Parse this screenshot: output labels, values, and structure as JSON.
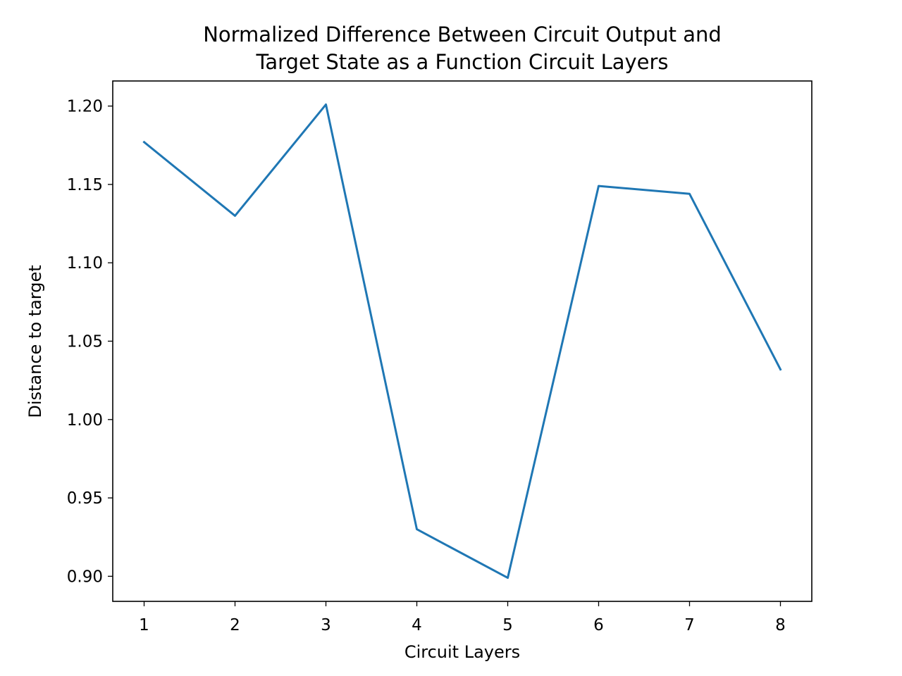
{
  "chart_data": {
    "type": "line",
    "title_lines": [
      "Normalized Difference Between Circuit Output and",
      "Target State as a Function Circuit Layers"
    ],
    "xlabel": "Circuit Layers",
    "ylabel": "Distance to target",
    "x": [
      1,
      2,
      3,
      4,
      5,
      6,
      7,
      8
    ],
    "series": [
      {
        "values": [
          1.177,
          1.13,
          1.201,
          0.93,
          0.899,
          1.149,
          1.144,
          1.032
        ],
        "color": "#1f77b4"
      }
    ],
    "xlim": [
      0.655,
      8.345
    ],
    "ylim": [
      0.884,
      1.216
    ],
    "xticks": [
      1,
      2,
      3,
      4,
      5,
      6,
      7,
      8
    ],
    "xtick_labels": [
      "1",
      "2",
      "3",
      "4",
      "5",
      "6",
      "7",
      "8"
    ],
    "yticks": [
      0.9,
      0.95,
      1.0,
      1.05,
      1.1,
      1.15,
      1.2
    ],
    "ytick_labels": [
      "0.90",
      "0.95",
      "1.00",
      "1.05",
      "1.10",
      "1.15",
      "1.20"
    ],
    "grid": false,
    "legend": "none"
  }
}
